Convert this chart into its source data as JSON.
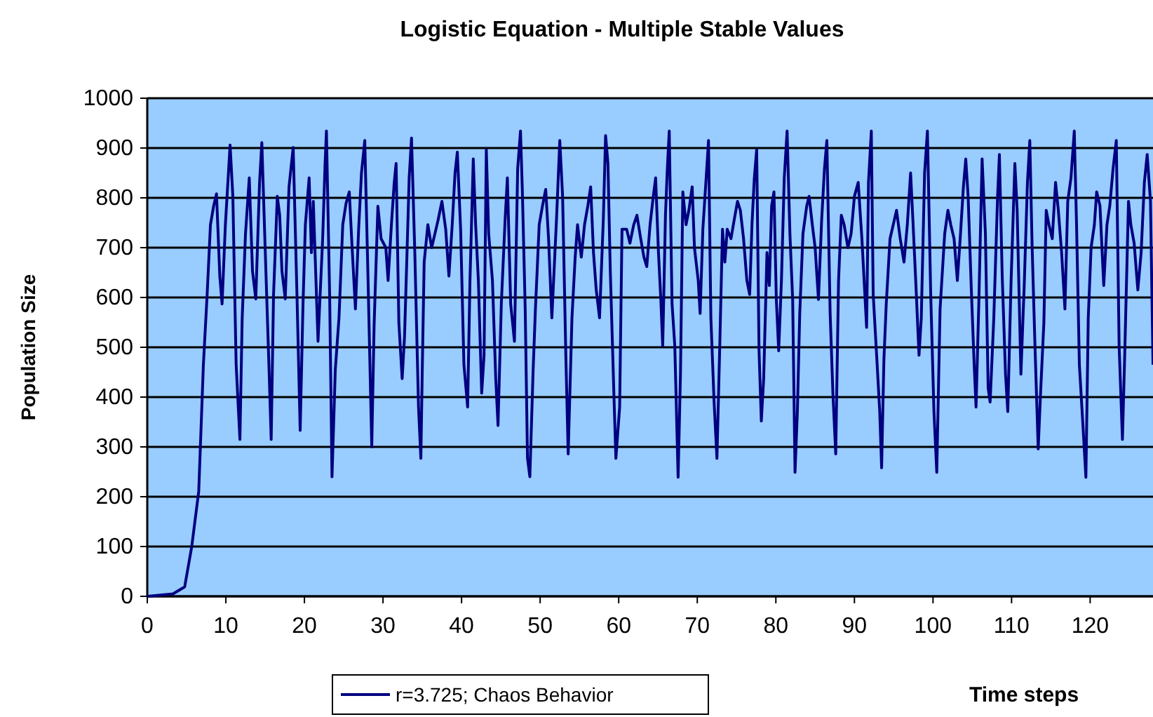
{
  "chart_data": {
    "type": "line",
    "title": "Logistic Equation - Multiple Stable Values",
    "xlabel": "Time steps",
    "ylabel": "Population Size",
    "xlim": [
      0,
      128
    ],
    "xticks": [
      0,
      10,
      20,
      30,
      40,
      50,
      60,
      70,
      80,
      90,
      100,
      110,
      120
    ],
    "ylim": [
      0,
      1000
    ],
    "yticks": [
      0,
      100,
      200,
      300,
      400,
      500,
      600,
      700,
      800,
      900,
      1000
    ],
    "grid": "y",
    "legend": "bottom",
    "marker": "none",
    "line_style": "solid",
    "series": [
      {
        "name": "r=3.725; Chaos Behavior",
        "color": "#000080",
        "x": [
          0,
          3.27,
          4.76,
          5.65,
          6.55,
          7.14,
          7.62,
          8.04,
          8.45,
          8.81,
          9.23,
          9.52,
          9.94,
          10.54,
          10.89,
          11.31,
          11.79,
          12.08,
          12.5,
          12.98,
          13.39,
          13.81,
          14.29,
          14.58,
          15,
          15.48,
          15.77,
          16.07,
          16.55,
          16.85,
          17.14,
          17.56,
          18.04,
          18.57,
          19.05,
          19.46,
          19.82,
          20.12,
          20.6,
          20.89,
          21.13,
          21.73,
          22.32,
          22.62,
          22.8,
          23.21,
          23.51,
          23.93,
          24.4,
          24.88,
          25.3,
          25.71,
          26.07,
          26.49,
          26.9,
          27.26,
          27.68,
          28.1,
          28.57,
          28.87,
          29.35,
          29.76,
          30.36,
          30.65,
          31.07,
          31.43,
          31.67,
          32.02,
          32.44,
          32.74,
          33.04,
          33.33,
          33.63,
          34.05,
          34.52,
          34.82,
          35,
          35.24,
          35.71,
          36.19,
          36.61,
          37.02,
          37.5,
          37.98,
          38.39,
          38.81,
          39.17,
          39.46,
          39.88,
          40.3,
          40.77,
          41.07,
          41.49,
          41.79,
          42.14,
          42.56,
          42.86,
          43.15,
          43.45,
          43.93,
          44.35,
          44.64,
          45.06,
          45.54,
          45.83,
          46.25,
          46.73,
          47.14,
          47.5,
          47.74,
          48.1,
          48.39,
          48.69,
          49.11,
          49.4,
          49.88,
          50.3,
          50.71,
          51.07,
          51.49,
          52.08,
          52.5,
          52.86,
          53.27,
          53.57,
          54.05,
          54.46,
          54.76,
          55.24,
          55.65,
          56.07,
          56.43,
          56.79,
          57.14,
          57.56,
          58.04,
          58.33,
          58.63,
          58.93,
          59.4,
          59.64,
          60.12,
          60.42,
          61.01,
          61.43,
          61.91,
          62.32,
          62.8,
          63.21,
          63.57,
          63.99,
          64.4,
          64.7,
          65.06,
          65.36,
          65.6,
          65.95,
          66.19,
          66.43,
          66.79,
          67.14,
          67.56,
          67.86,
          68.16,
          68.57,
          68.93,
          69.35,
          69.64,
          70.12,
          70.36,
          70.71,
          71.13,
          71.43,
          71.73,
          72.14,
          72.5,
          72.86,
          73.21,
          73.51,
          73.81,
          74.29,
          74.7,
          75.12,
          75.48,
          75.89,
          76.31,
          76.67,
          76.96,
          77.26,
          77.56,
          77.86,
          78.15,
          78.45,
          78.87,
          79.17,
          79.46,
          79.76,
          80.06,
          80.36,
          80.71,
          81.07,
          81.43,
          81.79,
          82.14,
          82.44,
          82.74,
          83.04,
          83.45,
          83.93,
          84.23,
          84.64,
          85,
          85.42,
          85.83,
          86.19,
          86.49,
          86.91,
          87.26,
          87.62,
          87.98,
          88.33,
          88.69,
          89.17,
          89.58,
          90,
          90.48,
          90.95,
          91.55,
          91.79,
          92.15,
          92.39,
          92.86,
          93.22,
          93.46,
          93.75,
          94.05,
          94.53,
          94.94,
          95.36,
          95.83,
          96.31,
          96.73,
          97.15,
          97.44,
          97.8,
          98.22,
          98.51,
          98.93,
          99.29,
          99.71,
          100.12,
          100.48,
          100.9,
          101.49,
          101.9,
          102.26,
          102.68,
          103.1,
          103.46,
          103.87,
          104.17,
          104.47,
          104.88,
          105.24,
          105.48,
          105.83,
          106.25,
          106.67,
          107.02,
          107.27,
          107.74,
          108.22,
          108.45,
          108.81,
          109.23,
          109.52,
          109.94,
          110.42,
          110.71,
          111.19,
          111.61,
          112.02,
          112.32,
          112.62,
          112.98,
          113.39,
          113.69,
          114.11,
          114.41,
          114.76,
          115.18,
          115.6,
          115.95,
          116.37,
          116.79,
          117.15,
          117.56,
          117.98,
          118.27,
          118.63,
          119.05,
          119.46,
          119.76,
          120.12,
          120.54,
          120.83,
          121.25,
          121.73,
          122.14,
          122.5,
          122.92,
          123.33,
          123.69,
          124.11,
          124.4,
          124.88,
          125.18,
          125.6,
          126.07,
          126.49,
          126.9,
          127.26,
          127.68,
          128
        ],
        "values": [
          0,
          5,
          19,
          99,
          211,
          465,
          606,
          746,
          784,
          808,
          643,
          587,
          746,
          906,
          803,
          465,
          315,
          559,
          728,
          840,
          653,
          597,
          831,
          911,
          700,
          465,
          315,
          606,
          803,
          765,
          653,
          597,
          822,
          901,
          606,
          333,
          587,
          746,
          840,
          690,
          793,
          512,
          718,
          864,
          934,
          606,
          240,
          455,
          559,
          746,
          789,
          812,
          700,
          577,
          737,
          850,
          915,
          634,
          300,
          545,
          783,
          718,
          700,
          634,
          746,
          831,
          869,
          549,
          437,
          521,
          681,
          840,
          920,
          690,
          380,
          277,
          455,
          671,
          746,
          700,
          728,
          756,
          793,
          737,
          643,
          746,
          850,
          892,
          737,
          465,
          380,
          634,
          878,
          746,
          634,
          408,
          483,
          897,
          728,
          634,
          437,
          343,
          587,
          756,
          840,
          587,
          512,
          859,
          934,
          812,
          577,
          277,
          240,
          455,
          577,
          746,
          784,
          817,
          718,
          559,
          756,
          915,
          803,
          484,
          286,
          559,
          681,
          746,
          681,
          746,
          784,
          822,
          690,
          615,
          559,
          756,
          925,
          869,
          653,
          399,
          277,
          380,
          737,
          737,
          709,
          746,
          765,
          718,
          681,
          662,
          746,
          803,
          840,
          690,
          596,
          502,
          765,
          859,
          934,
          587,
          502,
          239,
          446,
          812,
          746,
          775,
          822,
          700,
          634,
          568,
          737,
          840,
          915,
          559,
          390,
          277,
          502,
          737,
          671,
          737,
          718,
          756,
          793,
          775,
          718,
          634,
          606,
          746,
          840,
          897,
          493,
          352,
          437,
          690,
          624,
          784,
          812,
          596,
          493,
          634,
          840,
          934,
          728,
          596,
          249,
          371,
          568,
          728,
          784,
          803,
          746,
          700,
          596,
          756,
          859,
          915,
          568,
          408,
          286,
          634,
          765,
          746,
          700,
          728,
          803,
          831,
          718,
          540,
          831,
          934,
          606,
          474,
          371,
          258,
          474,
          587,
          718,
          746,
          775,
          718,
          671,
          746,
          850,
          756,
          634,
          484,
          559,
          850,
          934,
          606,
          371,
          249,
          577,
          728,
          775,
          746,
          718,
          634,
          718,
          822,
          878,
          803,
          615,
          465,
          380,
          587,
          878,
          728,
          418,
          390,
          559,
          803,
          887,
          643,
          446,
          371,
          634,
          869,
          775,
          446,
          624,
          831,
          915,
          700,
          502,
          296,
          408,
          549,
          775,
          746,
          718,
          831,
          775,
          690,
          577,
          793,
          840,
          934,
          746,
          465,
          352,
          239,
          559,
          700,
          746,
          812,
          784,
          624,
          746,
          784,
          859,
          915,
          502,
          315,
          484,
          793,
          746,
          709,
          615,
          690,
          831,
          887,
          793,
          465
        ]
      }
    ]
  }
}
